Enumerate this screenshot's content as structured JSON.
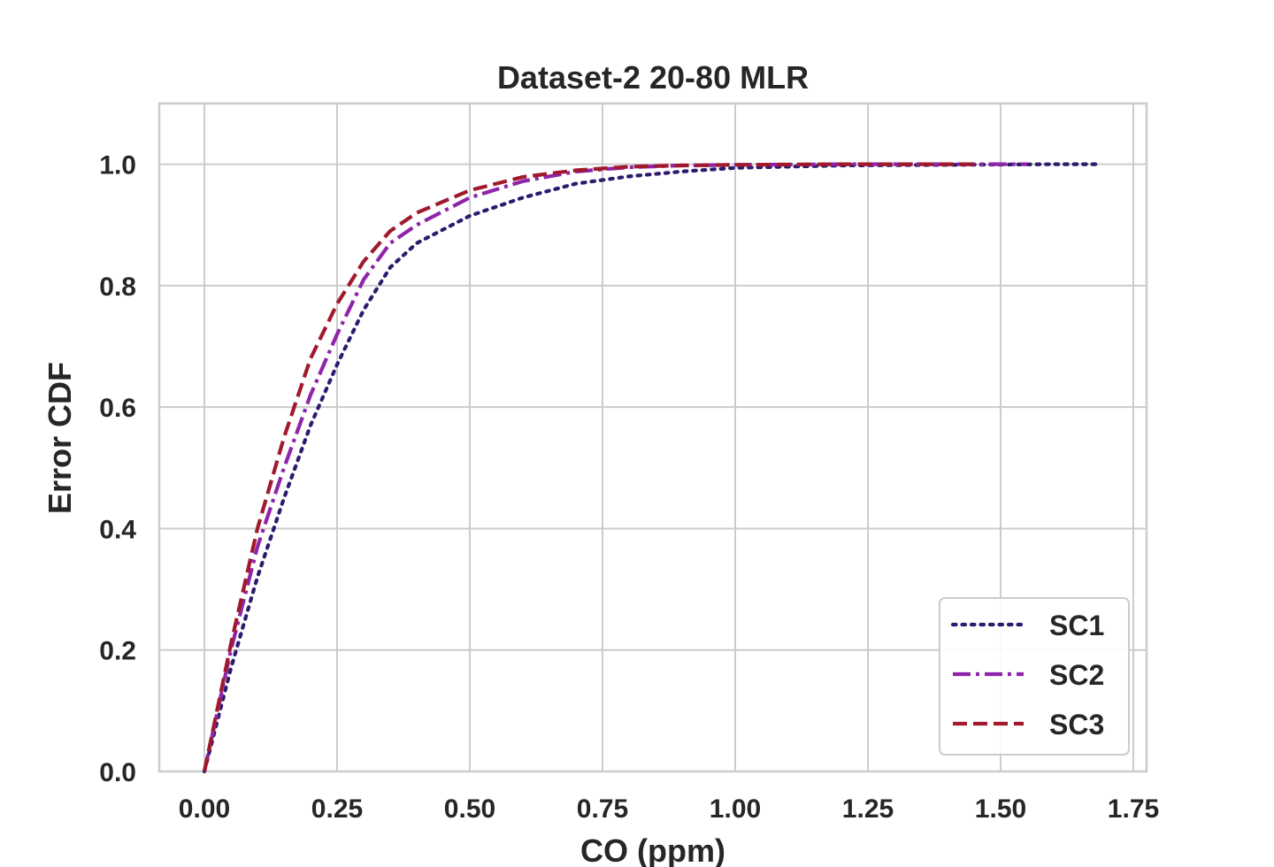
{
  "chart_data": {
    "type": "line",
    "title": "Dataset-2 20-80 MLR",
    "xlabel": "CO (ppm)",
    "ylabel": "Error CDF",
    "xlim": [
      -0.085,
      1.775
    ],
    "ylim": [
      0.0,
      1.1
    ],
    "xticks": [
      0.0,
      0.25,
      0.5,
      0.75,
      1.0,
      1.25,
      1.5,
      1.75
    ],
    "xtick_labels": [
      "0.00",
      "0.25",
      "0.50",
      "0.75",
      "1.00",
      "1.25",
      "1.50",
      "1.75"
    ],
    "yticks": [
      0.0,
      0.2,
      0.4,
      0.6,
      0.8,
      1.0
    ],
    "ytick_labels": [
      "0.0",
      "0.2",
      "0.4",
      "0.6",
      "0.8",
      "1.0"
    ],
    "grid": true,
    "legend_position": "lower-right",
    "series": [
      {
        "name": "SC1",
        "color": "#2c1b6e",
        "dash": "dotted",
        "x": [
          0.0,
          0.05,
          0.1,
          0.15,
          0.2,
          0.25,
          0.3,
          0.35,
          0.4,
          0.5,
          0.6,
          0.7,
          0.8,
          0.9,
          1.0,
          1.2,
          1.4,
          1.6,
          1.69
        ],
        "y": [
          0.0,
          0.17,
          0.32,
          0.45,
          0.57,
          0.67,
          0.76,
          0.83,
          0.87,
          0.915,
          0.945,
          0.968,
          0.98,
          0.988,
          0.994,
          0.998,
          0.999,
          1.0,
          1.0
        ]
      },
      {
        "name": "SC2",
        "color": "#8e24aa",
        "dash": "dashdot",
        "x": [
          0.0,
          0.05,
          0.1,
          0.15,
          0.2,
          0.25,
          0.3,
          0.35,
          0.4,
          0.5,
          0.6,
          0.7,
          0.8,
          0.9,
          1.0,
          1.2,
          1.4,
          1.55
        ],
        "y": [
          0.0,
          0.2,
          0.37,
          0.5,
          0.62,
          0.72,
          0.81,
          0.87,
          0.9,
          0.945,
          0.972,
          0.988,
          0.995,
          0.998,
          0.999,
          1.0,
          1.0,
          1.0
        ]
      },
      {
        "name": "SC3",
        "color": "#a0192d",
        "dash": "dashed",
        "x": [
          0.0,
          0.05,
          0.1,
          0.15,
          0.2,
          0.25,
          0.3,
          0.35,
          0.4,
          0.5,
          0.6,
          0.7,
          0.8,
          0.9,
          1.0,
          1.2,
          1.4,
          1.46
        ],
        "y": [
          0.0,
          0.21,
          0.4,
          0.55,
          0.68,
          0.77,
          0.84,
          0.89,
          0.92,
          0.957,
          0.979,
          0.99,
          0.996,
          0.998,
          0.999,
          1.0,
          1.0,
          1.0
        ]
      }
    ]
  }
}
